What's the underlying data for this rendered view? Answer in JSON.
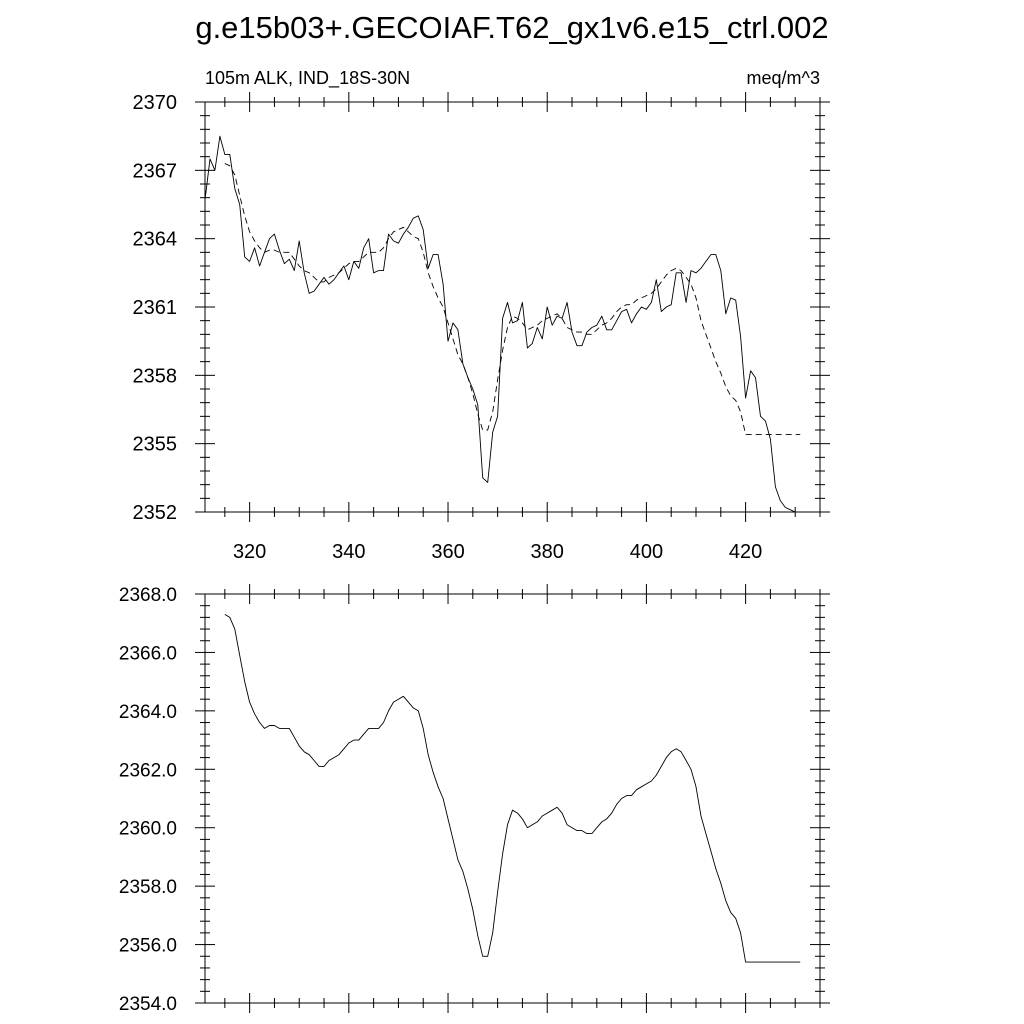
{
  "title": "g.e15b03+.GECOIAF.T62_gx1v6.e15_ctrl.002",
  "chart_data": [
    {
      "type": "line",
      "subtitle_left": "105m ALK, IND_18S-30N",
      "subtitle_right": "meq/m^3",
      "xlim": [
        311,
        435
      ],
      "ylim": [
        2352,
        2370
      ],
      "x_ticks": [
        320,
        340,
        360,
        380,
        400,
        420
      ],
      "x_tick_labels": [
        "320",
        "340",
        "360",
        "380",
        "400",
        "420"
      ],
      "y_ticks": [
        2352,
        2355,
        2358,
        2361,
        2364,
        2367,
        2370
      ],
      "y_tick_labels": [
        "2352",
        "2355",
        "2358",
        "2361",
        "2364",
        "2367",
        "2370"
      ],
      "grid": false,
      "series": [
        {
          "style": "solid",
          "x": [
            311,
            312,
            313,
            314,
            315,
            316,
            317,
            318,
            319,
            320,
            321,
            322,
            323,
            324,
            325,
            326,
            327,
            328,
            329,
            330,
            331,
            332,
            333,
            334,
            335,
            336,
            337,
            338,
            339,
            340,
            341,
            342,
            343,
            344,
            345,
            346,
            347,
            348,
            349,
            350,
            351,
            352,
            353,
            354,
            355,
            356,
            357,
            358,
            359,
            360,
            361,
            362,
            363,
            364,
            365,
            366,
            367,
            368,
            369,
            370,
            371,
            372,
            373,
            374,
            375,
            376,
            377,
            378,
            379,
            380,
            381,
            382,
            383,
            384,
            385,
            386,
            387,
            388,
            389,
            390,
            391,
            392,
            393,
            394,
            395,
            396,
            397,
            398,
            399,
            400,
            401,
            402,
            403,
            404,
            405,
            406,
            407,
            408,
            409,
            410,
            411,
            412,
            413,
            414,
            415,
            416,
            417,
            418,
            419,
            420,
            421,
            422,
            423,
            424,
            425,
            426,
            427,
            428,
            429,
            430,
            431,
            432,
            433,
            434,
            435
          ],
          "y": [
            2365.7,
            2367.5,
            2367.0,
            2368.5,
            2367.7,
            2367.7,
            2366.2,
            2365.5,
            2363.2,
            2363.0,
            2363.6,
            2362.8,
            2363.4,
            2364.0,
            2364.2,
            2363.5,
            2362.9,
            2363.1,
            2362.6,
            2363.9,
            2362.5,
            2361.6,
            2361.7,
            2362.0,
            2362.3,
            2362.0,
            2362.2,
            2362.5,
            2362.8,
            2362.2,
            2363.0,
            2362.7,
            2363.6,
            2364.0,
            2362.5,
            2362.6,
            2362.6,
            2364.2,
            2363.9,
            2363.8,
            2364.2,
            2364.5,
            2364.9,
            2365.0,
            2364.4,
            2362.7,
            2363.3,
            2363.3,
            2362.0,
            2359.5,
            2360.3,
            2360.0,
            2358.5,
            2357.9,
            2357.4,
            2356.7,
            2353.5,
            2353.3,
            2355.5,
            2356.2,
            2360.5,
            2361.2,
            2360.3,
            2360.4,
            2361.2,
            2359.2,
            2359.4,
            2360.1,
            2359.6,
            2361.0,
            2360.2,
            2360.6,
            2360.5,
            2361.2,
            2359.9,
            2359.3,
            2359.3,
            2359.9,
            2360.1,
            2360.2,
            2360.6,
            2360.0,
            2360.0,
            2360.4,
            2360.8,
            2360.9,
            2360.3,
            2360.7,
            2361.0,
            2360.9,
            2361.2,
            2362.2,
            2360.8,
            2361.0,
            2361.1,
            2362.5,
            2362.5,
            2361.2,
            2362.6,
            2362.5,
            2362.7,
            2363.0,
            2363.3,
            2363.3,
            2362.6,
            2360.7,
            2361.4,
            2361.3,
            2359.7,
            2357.0,
            2358.2,
            2357.9,
            2356.2,
            2356.0,
            2355.2,
            2353.1,
            2352.5,
            2352.2,
            2352.1,
            2352.0,
            2352.0,
            2352.0,
            2352.0,
            2352.0,
            2352.0
          ]
        },
        {
          "style": "dashed",
          "x": [
            315,
            316,
            317,
            318,
            319,
            320,
            321,
            322,
            323,
            324,
            325,
            326,
            327,
            328,
            329,
            330,
            331,
            332,
            333,
            334,
            335,
            336,
            337,
            338,
            339,
            340,
            341,
            342,
            343,
            344,
            345,
            346,
            347,
            348,
            349,
            350,
            351,
            352,
            353,
            354,
            355,
            356,
            357,
            358,
            359,
            360,
            361,
            362,
            363,
            364,
            365,
            366,
            367,
            368,
            369,
            370,
            371,
            372,
            373,
            374,
            375,
            376,
            377,
            378,
            379,
            380,
            381,
            382,
            383,
            384,
            385,
            386,
            387,
            388,
            389,
            390,
            391,
            392,
            393,
            394,
            395,
            396,
            397,
            398,
            399,
            400,
            401,
            402,
            403,
            404,
            405,
            406,
            407,
            408,
            409,
            410,
            411,
            412,
            413,
            414,
            415,
            416,
            417,
            418,
            419,
            420,
            421,
            422,
            423,
            424,
            425,
            426,
            427,
            428,
            429,
            430,
            431
          ],
          "y": [
            2367.3,
            2367.2,
            2366.8,
            2365.9,
            2365.0,
            2364.3,
            2363.9,
            2363.6,
            2363.4,
            2363.5,
            2363.5,
            2363.4,
            2363.4,
            2363.4,
            2363.1,
            2362.8,
            2362.6,
            2362.5,
            2362.3,
            2362.1,
            2362.1,
            2362.3,
            2362.4,
            2362.5,
            2362.7,
            2362.9,
            2363.0,
            2363.0,
            2363.2,
            2363.4,
            2363.4,
            2363.4,
            2363.6,
            2364.0,
            2364.3,
            2364.4,
            2364.5,
            2364.3,
            2364.1,
            2364.0,
            2363.4,
            2362.5,
            2361.9,
            2361.4,
            2361.0,
            2360.3,
            2359.6,
            2358.9,
            2358.5,
            2357.9,
            2357.2,
            2356.3,
            2355.6,
            2355.6,
            2356.4,
            2357.8,
            2359.1,
            2360.1,
            2360.6,
            2360.5,
            2360.3,
            2360.0,
            2360.1,
            2360.2,
            2360.4,
            2360.5,
            2360.6,
            2360.7,
            2360.5,
            2360.1,
            2360.0,
            2359.9,
            2359.9,
            2359.8,
            2359.8,
            2360.0,
            2360.2,
            2360.3,
            2360.5,
            2360.8,
            2361.0,
            2361.1,
            2361.1,
            2361.3,
            2361.4,
            2361.5,
            2361.6,
            2361.8,
            2362.1,
            2362.4,
            2362.6,
            2362.7,
            2362.6,
            2362.3,
            2362.0,
            2361.4,
            2360.4,
            2359.8,
            2359.2,
            2358.6,
            2358.1,
            2357.5,
            2357.1,
            2356.9,
            2356.4,
            2355.4,
            2355.4,
            2355.4,
            2355.4,
            2355.4,
            2355.4,
            2355.4,
            2355.4,
            2355.4,
            2355.4,
            2355.4,
            2355.4
          ]
        }
      ]
    },
    {
      "type": "line",
      "xlim": [
        311,
        435
      ],
      "ylim": [
        2354.0,
        2368.0
      ],
      "x_ticks": [
        320,
        340,
        360,
        380,
        400,
        420
      ],
      "x_tick_labels": [],
      "y_ticks": [
        2354.0,
        2356.0,
        2358.0,
        2360.0,
        2362.0,
        2364.0,
        2366.0,
        2368.0
      ],
      "y_tick_labels": [
        "2354.0",
        "2356.0",
        "2358.0",
        "2360.0",
        "2362.0",
        "2364.0",
        "2366.0",
        "2368.0"
      ],
      "grid": false,
      "series": [
        {
          "style": "solid",
          "x": [
            315,
            316,
            317,
            318,
            319,
            320,
            321,
            322,
            323,
            324,
            325,
            326,
            327,
            328,
            329,
            330,
            331,
            332,
            333,
            334,
            335,
            336,
            337,
            338,
            339,
            340,
            341,
            342,
            343,
            344,
            345,
            346,
            347,
            348,
            349,
            350,
            351,
            352,
            353,
            354,
            355,
            356,
            357,
            358,
            359,
            360,
            361,
            362,
            363,
            364,
            365,
            366,
            367,
            368,
            369,
            370,
            371,
            372,
            373,
            374,
            375,
            376,
            377,
            378,
            379,
            380,
            381,
            382,
            383,
            384,
            385,
            386,
            387,
            388,
            389,
            390,
            391,
            392,
            393,
            394,
            395,
            396,
            397,
            398,
            399,
            400,
            401,
            402,
            403,
            404,
            405,
            406,
            407,
            408,
            409,
            410,
            411,
            412,
            413,
            414,
            415,
            416,
            417,
            418,
            419,
            420,
            421,
            422,
            423,
            424,
            425,
            426,
            427,
            428,
            429,
            430,
            431
          ],
          "y": [
            2367.3,
            2367.2,
            2366.8,
            2365.9,
            2365.0,
            2364.3,
            2363.9,
            2363.6,
            2363.4,
            2363.5,
            2363.5,
            2363.4,
            2363.4,
            2363.4,
            2363.1,
            2362.8,
            2362.6,
            2362.5,
            2362.3,
            2362.1,
            2362.1,
            2362.3,
            2362.4,
            2362.5,
            2362.7,
            2362.9,
            2363.0,
            2363.0,
            2363.2,
            2363.4,
            2363.4,
            2363.4,
            2363.6,
            2364.0,
            2364.3,
            2364.4,
            2364.5,
            2364.3,
            2364.1,
            2364.0,
            2363.4,
            2362.5,
            2361.9,
            2361.4,
            2361.0,
            2360.3,
            2359.6,
            2358.9,
            2358.5,
            2357.9,
            2357.2,
            2356.3,
            2355.6,
            2355.6,
            2356.4,
            2357.8,
            2359.1,
            2360.1,
            2360.6,
            2360.5,
            2360.3,
            2360.0,
            2360.1,
            2360.2,
            2360.4,
            2360.5,
            2360.6,
            2360.7,
            2360.5,
            2360.1,
            2360.0,
            2359.9,
            2359.9,
            2359.8,
            2359.8,
            2360.0,
            2360.2,
            2360.3,
            2360.5,
            2360.8,
            2361.0,
            2361.1,
            2361.1,
            2361.3,
            2361.4,
            2361.5,
            2361.6,
            2361.8,
            2362.1,
            2362.4,
            2362.6,
            2362.7,
            2362.6,
            2362.3,
            2362.0,
            2361.4,
            2360.4,
            2359.8,
            2359.2,
            2358.6,
            2358.1,
            2357.5,
            2357.1,
            2356.9,
            2356.4,
            2355.4,
            2355.4,
            2355.4,
            2355.4,
            2355.4,
            2355.4,
            2355.4,
            2355.4,
            2355.4,
            2355.4,
            2355.4,
            2355.4
          ]
        }
      ]
    }
  ]
}
